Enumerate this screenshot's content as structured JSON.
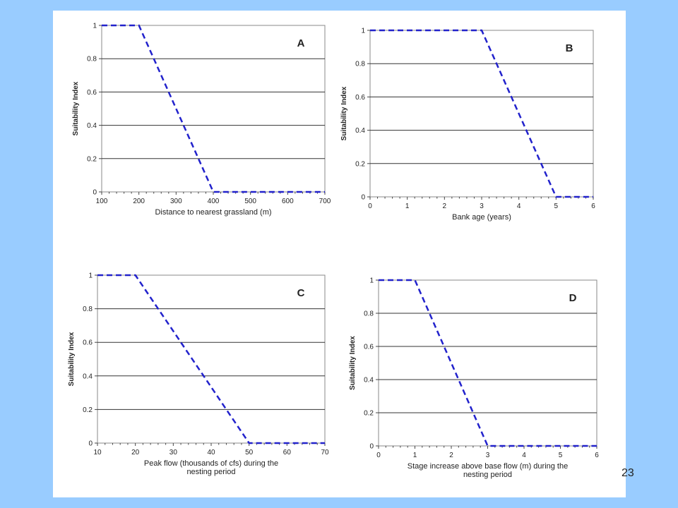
{
  "slide": {
    "page_number": "23",
    "colors": {
      "background": "#99ccff",
      "panel": "#ffffff",
      "line": "#2222cc",
      "grid": "#333333"
    }
  },
  "chart_data": [
    {
      "type": "line",
      "panel_label": "A",
      "xlabel": [
        "Distance to nearest grassland (m)"
      ],
      "ylabel": "Suitability Index",
      "xlim": [
        100,
        700
      ],
      "ylim": [
        0,
        1
      ],
      "xticks": [
        "100",
        "200",
        "300",
        "400",
        "500",
        "600",
        "700"
      ],
      "yticks": [
        "0",
        "0.2",
        "0.4",
        "0.6",
        "0.8",
        "1"
      ],
      "series": [
        {
          "x": [
            100,
            200,
            400,
            700
          ],
          "y": [
            1,
            1,
            0,
            0
          ],
          "style": "dashed"
        }
      ],
      "grid": "horizontal"
    },
    {
      "type": "line",
      "panel_label": "B",
      "xlabel": [
        "Bank age (years)"
      ],
      "ylabel": "Suitability Index",
      "xlim": [
        0,
        6
      ],
      "ylim": [
        0,
        1
      ],
      "xticks": [
        "0",
        "1",
        "2",
        "3",
        "4",
        "5",
        "6"
      ],
      "yticks": [
        "0",
        "0.2",
        "0.4",
        "0.6",
        "0.8",
        "1"
      ],
      "series": [
        {
          "x": [
            0,
            3,
            5,
            6
          ],
          "y": [
            1,
            1,
            0,
            0
          ],
          "style": "dashed"
        }
      ],
      "grid": "horizontal"
    },
    {
      "type": "line",
      "panel_label": "C",
      "xlabel": [
        "Peak flow (thousands of cfs) during the",
        "nesting period"
      ],
      "ylabel": "Suitability Index",
      "xlim": [
        10,
        70
      ],
      "ylim": [
        0,
        1
      ],
      "xticks": [
        "10",
        "20",
        "30",
        "40",
        "50",
        "60",
        "70"
      ],
      "yticks": [
        "0",
        "0.2",
        "0.4",
        "0.6",
        "0.8",
        "1"
      ],
      "series": [
        {
          "x": [
            10,
            20,
            50,
            70
          ],
          "y": [
            1,
            1,
            0,
            0
          ],
          "style": "dashed"
        }
      ],
      "grid": "horizontal"
    },
    {
      "type": "line",
      "panel_label": "D",
      "xlabel": [
        "Stage increase above base flow (m) during the",
        "nesting period"
      ],
      "ylabel": "Suitability Index",
      "xlim": [
        0,
        6
      ],
      "ylim": [
        0,
        1
      ],
      "xticks": [
        "0",
        "1",
        "2",
        "3",
        "4",
        "5",
        "6"
      ],
      "yticks": [
        "0",
        "0.2",
        "0.4",
        "0.6",
        "0.8",
        "1"
      ],
      "series": [
        {
          "x": [
            0,
            1,
            3,
            6
          ],
          "y": [
            1,
            1,
            0,
            0
          ],
          "style": "dashed"
        }
      ],
      "grid": "horizontal"
    }
  ]
}
